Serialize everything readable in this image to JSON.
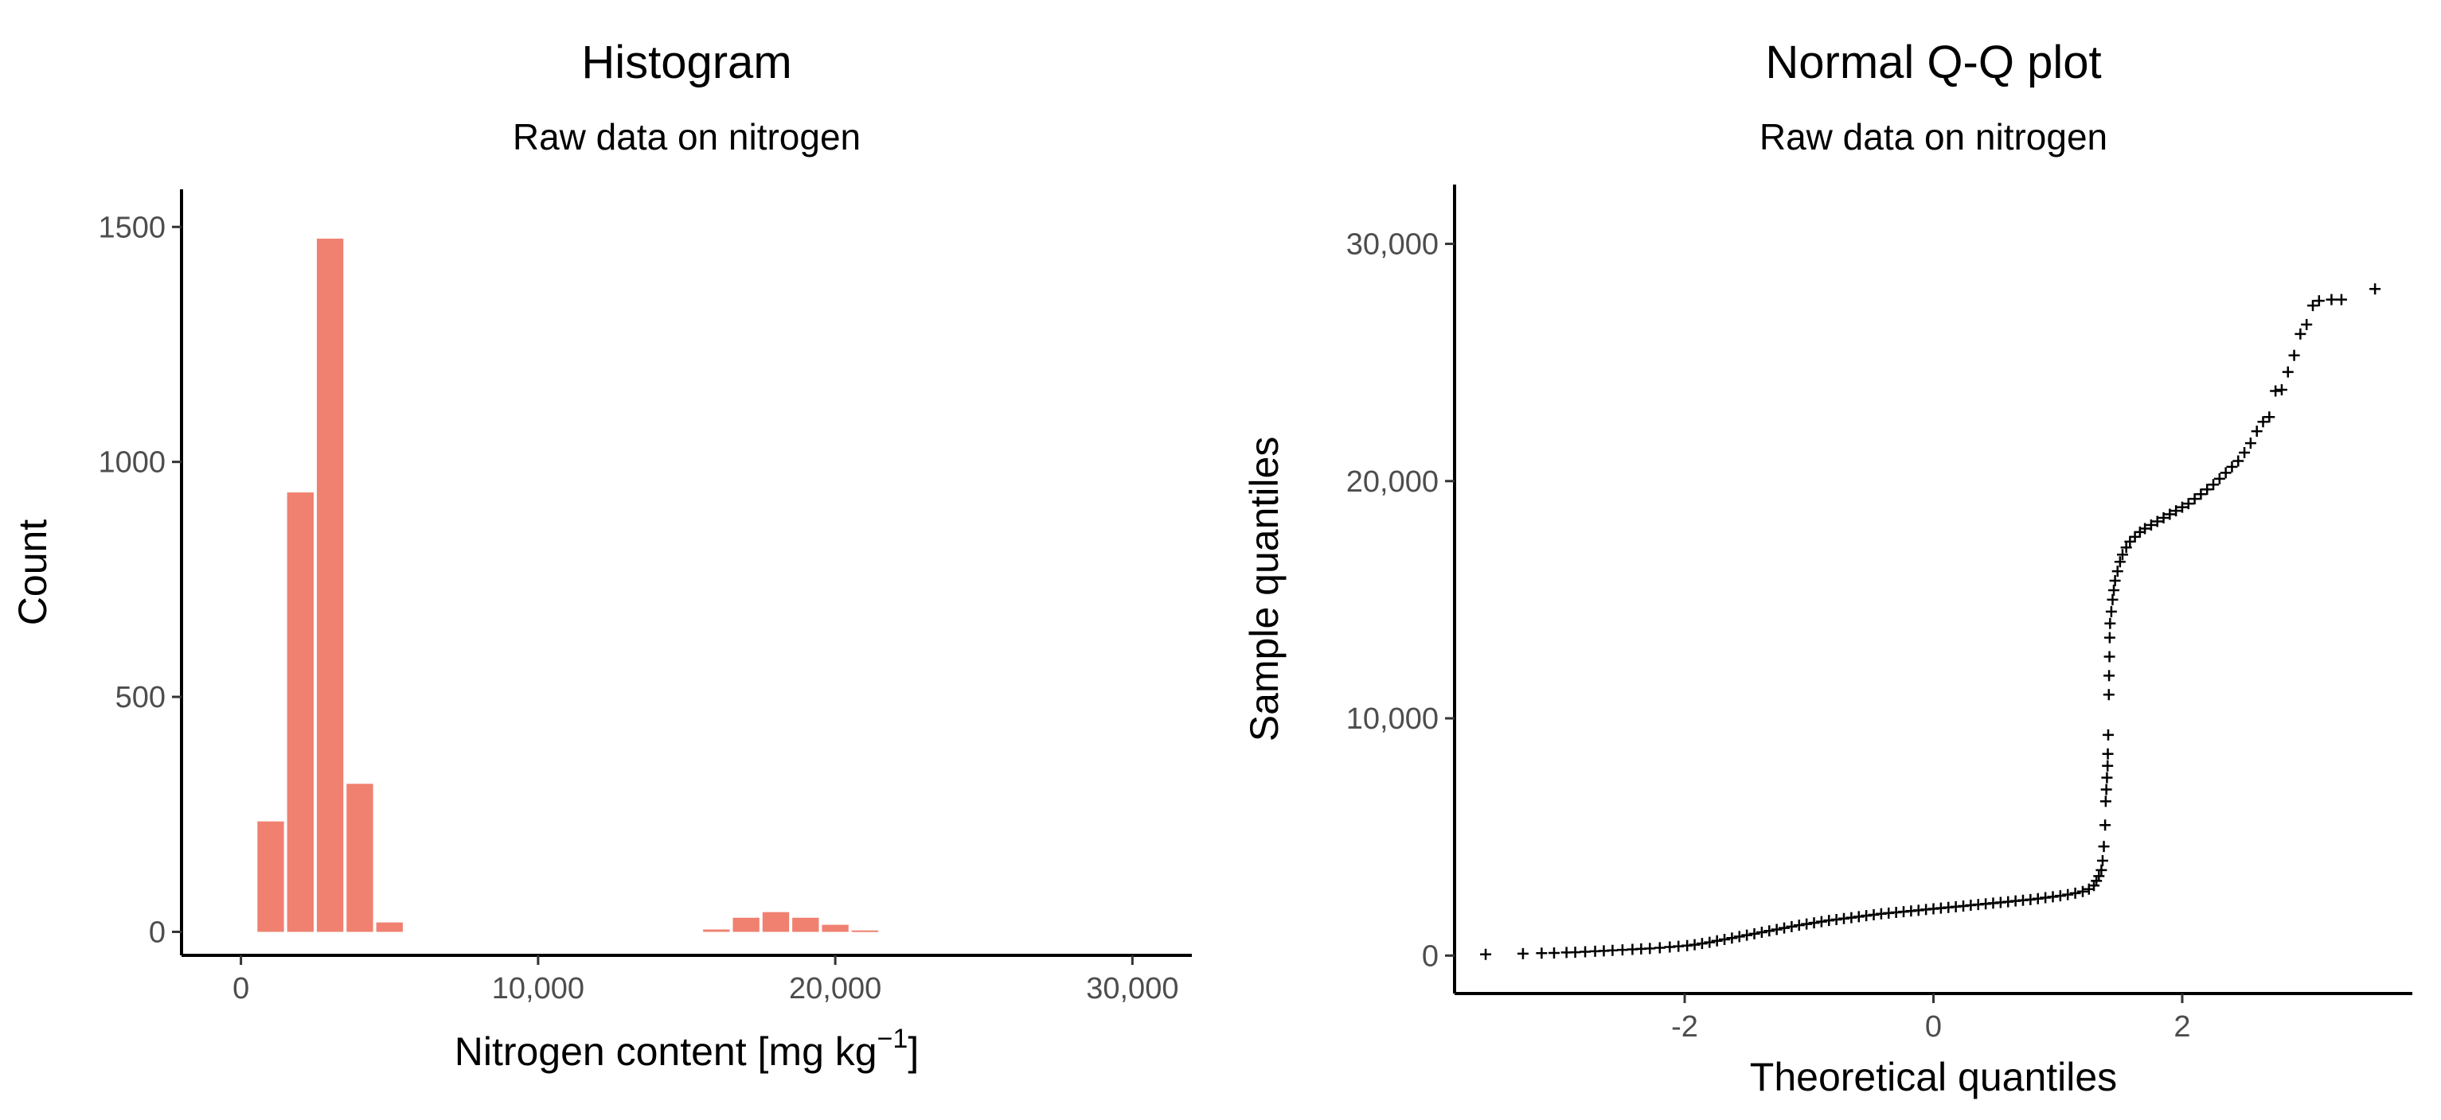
{
  "chart_data": [
    {
      "type": "bar",
      "title": "Histogram",
      "subtitle": "Raw data on nitrogen",
      "xlabel": "Nitrogen content [mg kg",
      "xlabel_superscript": "−1",
      "xlabel_suffix": "]",
      "ylabel": "Count",
      "xlim": [
        -2000,
        32000
      ],
      "ylim": [
        -50,
        1580
      ],
      "x_ticks": [
        0,
        10000,
        20000,
        30000
      ],
      "x_tick_labels": [
        "0",
        "10,000",
        "20,000",
        "30,000"
      ],
      "y_ticks": [
        0,
        500,
        1000,
        1500
      ],
      "y_tick_labels": [
        "0",
        "500",
        "1000",
        "1500"
      ],
      "bin_width": 1000,
      "bin_centers": [
        1000,
        2000,
        3000,
        4000,
        5000,
        16000,
        17000,
        18000,
        19000,
        20000,
        21000
      ],
      "values": [
        235,
        935,
        1475,
        315,
        20,
        5,
        30,
        42,
        30,
        15,
        3
      ],
      "bar_color": "#f08070",
      "grid": false
    },
    {
      "type": "scatter",
      "title": "Normal Q-Q plot",
      "subtitle": "Raw data on nitrogen",
      "xlabel": "Theoretical quantiles",
      "ylabel": "Sample quantiles",
      "xlim": [
        -3.85,
        3.85
      ],
      "ylim": [
        -1600,
        32500
      ],
      "x_ticks": [
        -2,
        0,
        2
      ],
      "x_tick_labels": [
        "-2",
        "0",
        "2"
      ],
      "y_ticks": [
        0,
        10000,
        20000,
        30000
      ],
      "y_tick_labels": [
        "0",
        "10,000",
        "20,000",
        "30,000"
      ],
      "marker": "+",
      "marker_color": "#000000",
      "grid": false,
      "points": [
        [
          -3.6,
          50
        ],
        [
          -3.3,
          80
        ],
        [
          -3.15,
          100
        ],
        [
          -3.05,
          110
        ],
        [
          -2.95,
          130
        ],
        [
          -2.88,
          140
        ],
        [
          -2.8,
          160
        ],
        [
          -2.72,
          180
        ],
        [
          -2.65,
          200
        ],
        [
          -2.58,
          220
        ],
        [
          -2.5,
          240
        ],
        [
          -2.42,
          260
        ],
        [
          -2.35,
          280
        ],
        [
          -2.28,
          300
        ],
        [
          -2.2,
          330
        ],
        [
          -2.12,
          360
        ],
        [
          -2.05,
          390
        ],
        [
          -1.98,
          420
        ],
        [
          -1.92,
          460
        ],
        [
          -1.86,
          510
        ],
        [
          -1.8,
          560
        ],
        [
          -1.74,
          620
        ],
        [
          -1.68,
          680
        ],
        [
          -1.62,
          740
        ],
        [
          -1.56,
          800
        ],
        [
          -1.5,
          860
        ],
        [
          -1.44,
          920
        ],
        [
          -1.38,
          980
        ],
        [
          -1.32,
          1040
        ],
        [
          -1.26,
          1100
        ],
        [
          -1.2,
          1160
        ],
        [
          -1.14,
          1220
        ],
        [
          -1.08,
          1280
        ],
        [
          -1.02,
          1330
        ],
        [
          -0.96,
          1380
        ],
        [
          -0.9,
          1430
        ],
        [
          -0.84,
          1480
        ],
        [
          -0.78,
          1520
        ],
        [
          -0.72,
          1560
        ],
        [
          -0.66,
          1600
        ],
        [
          -0.6,
          1640
        ],
        [
          -0.54,
          1680
        ],
        [
          -0.48,
          1720
        ],
        [
          -0.42,
          1760
        ],
        [
          -0.36,
          1790
        ],
        [
          -0.3,
          1820
        ],
        [
          -0.24,
          1850
        ],
        [
          -0.18,
          1880
        ],
        [
          -0.12,
          1910
        ],
        [
          -0.06,
          1940
        ],
        [
          0.0,
          1970
        ],
        [
          0.06,
          2000
        ],
        [
          0.12,
          2030
        ],
        [
          0.18,
          2060
        ],
        [
          0.24,
          2090
        ],
        [
          0.3,
          2120
        ],
        [
          0.36,
          2150
        ],
        [
          0.42,
          2180
        ],
        [
          0.48,
          2210
        ],
        [
          0.54,
          2240
        ],
        [
          0.6,
          2270
        ],
        [
          0.66,
          2300
        ],
        [
          0.72,
          2330
        ],
        [
          0.78,
          2360
        ],
        [
          0.84,
          2400
        ],
        [
          0.9,
          2440
        ],
        [
          0.96,
          2480
        ],
        [
          1.02,
          2520
        ],
        [
          1.08,
          2570
        ],
        [
          1.14,
          2630
        ],
        [
          1.2,
          2700
        ],
        [
          1.25,
          2800
        ],
        [
          1.29,
          2950
        ],
        [
          1.31,
          3150
        ],
        [
          1.33,
          3350
        ],
        [
          1.35,
          3600
        ],
        [
          1.36,
          4000
        ],
        [
          1.37,
          4600
        ],
        [
          1.38,
          5500
        ],
        [
          1.385,
          6500
        ],
        [
          1.39,
          7000
        ],
        [
          1.395,
          7500
        ],
        [
          1.4,
          8000
        ],
        [
          1.402,
          8500
        ],
        [
          1.405,
          9300
        ],
        [
          1.41,
          11000
        ],
        [
          1.412,
          11800
        ],
        [
          1.415,
          12600
        ],
        [
          1.417,
          13400
        ],
        [
          1.42,
          14000
        ],
        [
          1.43,
          14500
        ],
        [
          1.44,
          15000
        ],
        [
          1.45,
          15400
        ],
        [
          1.46,
          15800
        ],
        [
          1.48,
          16200
        ],
        [
          1.5,
          16600
        ],
        [
          1.52,
          16900
        ],
        [
          1.55,
          17200
        ],
        [
          1.58,
          17450
        ],
        [
          1.62,
          17650
        ],
        [
          1.66,
          17850
        ],
        [
          1.7,
          18000
        ],
        [
          1.75,
          18150
        ],
        [
          1.8,
          18300
        ],
        [
          1.85,
          18450
        ],
        [
          1.9,
          18600
        ],
        [
          1.95,
          18750
        ],
        [
          2.0,
          18900
        ],
        [
          2.05,
          19050
        ],
        [
          2.1,
          19250
        ],
        [
          2.15,
          19450
        ],
        [
          2.2,
          19650
        ],
        [
          2.25,
          19850
        ],
        [
          2.3,
          20100
        ],
        [
          2.35,
          20350
        ],
        [
          2.4,
          20600
        ],
        [
          2.45,
          20850
        ],
        [
          2.5,
          21200
        ],
        [
          2.55,
          21600
        ],
        [
          2.6,
          22100
        ],
        [
          2.65,
          22500
        ],
        [
          2.7,
          22700
        ],
        [
          2.75,
          23800
        ],
        [
          2.8,
          23850
        ],
        [
          2.85,
          24600
        ],
        [
          2.9,
          25300
        ],
        [
          2.95,
          26200
        ],
        [
          3.0,
          26600
        ],
        [
          3.05,
          27400
        ],
        [
          3.1,
          27600
        ],
        [
          3.2,
          27650
        ],
        [
          3.28,
          27650
        ],
        [
          3.55,
          28100
        ]
      ]
    }
  ]
}
